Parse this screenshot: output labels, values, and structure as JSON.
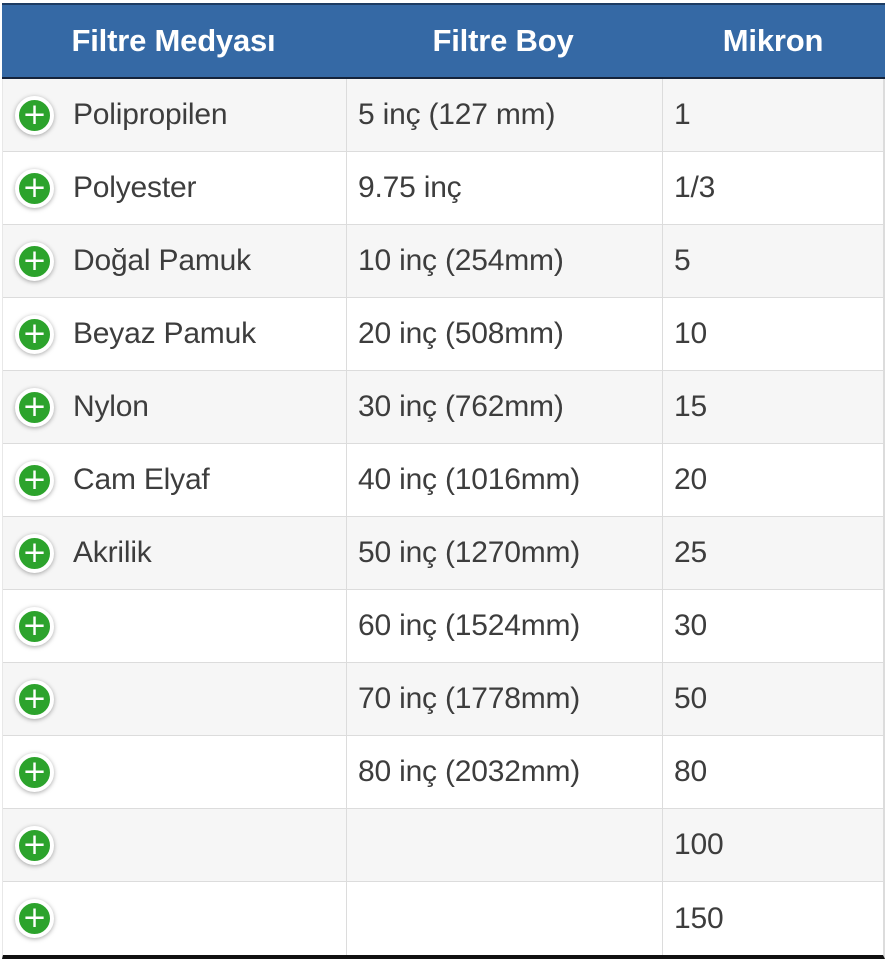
{
  "header": {
    "columns": [
      {
        "label": "Filtre Medyası"
      },
      {
        "label": "Filtre Boy"
      },
      {
        "label": "Mikron"
      }
    ]
  },
  "rows": [
    {
      "media": "Polipropilen",
      "boy": "5 inç (127 mm)",
      "mikron": "1"
    },
    {
      "media": "Polyester",
      "boy": "9.75 inç",
      "mikron": "1/3"
    },
    {
      "media": "Doğal Pamuk",
      "boy": "10 inç (254mm)",
      "mikron": "5"
    },
    {
      "media": "Beyaz Pamuk",
      "boy": "20 inç (508mm)",
      "mikron": "10"
    },
    {
      "media": "Nylon",
      "boy": "30 inç (762mm)",
      "mikron": "15"
    },
    {
      "media": "Cam Elyaf",
      "boy": "40 inç (1016mm)",
      "mikron": "20"
    },
    {
      "media": "Akrilik",
      "boy": "50 inç (1270mm)",
      "mikron": "25"
    },
    {
      "media": "",
      "boy": "60 inç (1524mm)",
      "mikron": "30"
    },
    {
      "media": "",
      "boy": "70 inç (1778mm)",
      "mikron": "50"
    },
    {
      "media": "",
      "boy": "80 inç (2032mm)",
      "mikron": "80"
    },
    {
      "media": "",
      "boy": "",
      "mikron": "100"
    },
    {
      "media": "",
      "boy": "",
      "mikron": "150"
    }
  ],
  "icons": {
    "expand": "plus-icon",
    "expand_glyph": "+"
  },
  "colors": {
    "header_bg": "#3569a5",
    "header_text": "#ffffff",
    "header_top_border": "#1d3c63",
    "dark_border": "#14233b",
    "row_alt_bg": "#f6f6f6",
    "row_bg": "#ffffff",
    "divider": "#dcdcdc",
    "body_text": "#3d3d3d",
    "expand_green": "#2ca32c",
    "bottom_border": "#111111"
  }
}
